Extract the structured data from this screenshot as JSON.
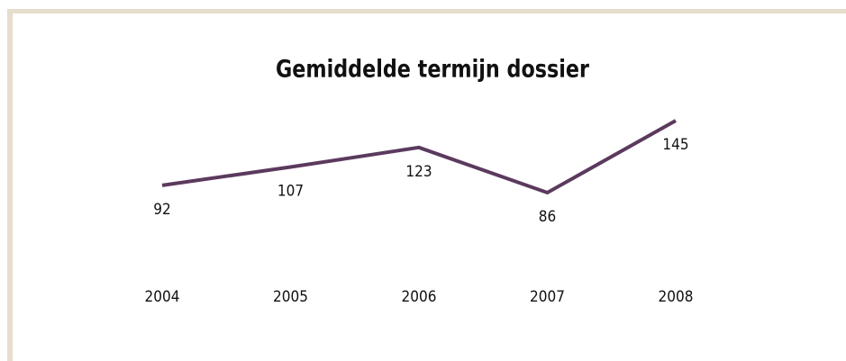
{
  "chart_data": {
    "type": "line",
    "title": "Gemiddelde termijn dossier",
    "categories": [
      "2004",
      "2005",
      "2006",
      "2007",
      "2008"
    ],
    "values": [
      92,
      107,
      123,
      86,
      145
    ],
    "color": "#5b3a5e",
    "title_color": "#b8a46c"
  }
}
